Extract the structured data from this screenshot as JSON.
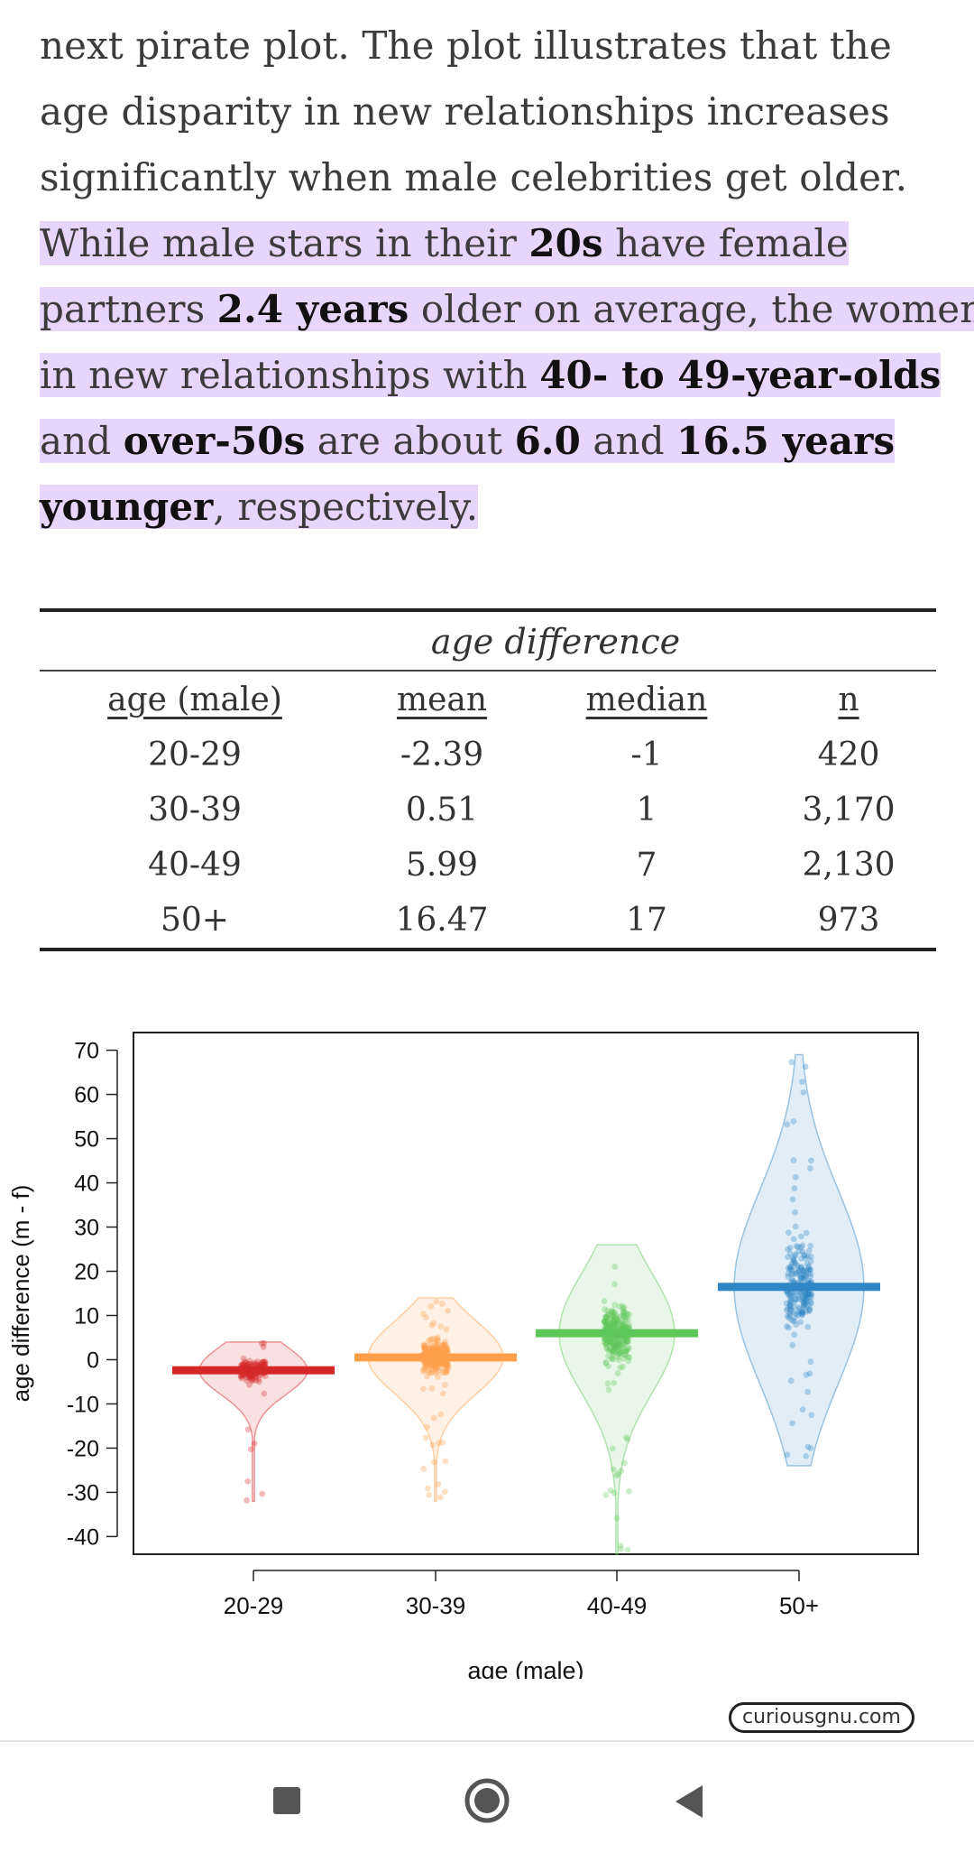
{
  "article": {
    "line1": "next pirate plot. The plot illustrates that the",
    "line2": "age disparity in new relationships increases",
    "line3": "significantly when male celebrities get older.",
    "l4a": "While male stars in their ",
    "l4b": "20s",
    "l4c": " have female",
    "l5a": "partners ",
    "l5b": "2.4 years",
    "l5c": " older on average, the women",
    "l6a": "in new relationships with ",
    "l6b": "40- to 49-year-olds",
    "l7a": "and ",
    "l7b": "over-50s",
    "l7c": " are about ",
    "l7d": "6.0",
    "l7e": " and ",
    "l7f": "16.5 years",
    "l8a": "younger",
    "l8b": ", respectively.",
    "highlight_color": "#e8d5fb"
  },
  "table": {
    "group_header": "age difference",
    "columns": [
      "age (male)",
      "mean",
      "median",
      "n"
    ],
    "rows": [
      [
        "20-29",
        "-2.39",
        "-1",
        "420"
      ],
      [
        "30-39",
        "0.51",
        "1",
        "3,170"
      ],
      [
        "40-49",
        "5.99",
        "7",
        "2,130"
      ],
      [
        "50+",
        "16.47",
        "17",
        "973"
      ]
    ]
  },
  "chart_data": {
    "type": "scatter",
    "subtype": "pirate plot",
    "xlabel": "age (male)",
    "ylabel": "age difference (m - f)",
    "categories": [
      "20-29",
      "30-39",
      "40-49",
      "50+"
    ],
    "y_ticks": [
      70,
      60,
      50,
      40,
      30,
      20,
      10,
      0,
      -10,
      -20,
      -30,
      -40
    ],
    "ylim": [
      -44,
      74
    ],
    "series": [
      {
        "category": "20-29",
        "mean": -2.39,
        "min": -32,
        "max": 4,
        "q_low": -10,
        "q_high": 2,
        "color": "#d62728"
      },
      {
        "category": "30-39",
        "mean": 0.51,
        "min": -32,
        "max": 14,
        "q_low": -10,
        "q_high": 8,
        "color": "#ff9f4a"
      },
      {
        "category": "40-49",
        "mean": 5.99,
        "min": -44,
        "max": 26,
        "q_low": -12,
        "q_high": 18,
        "color": "#5fc65a"
      },
      {
        "category": "50+",
        "mean": 16.47,
        "min": -24,
        "max": 69,
        "q_low": -8,
        "q_high": 40,
        "color": "#2f86c4"
      }
    ],
    "grid": false
  },
  "watermark": "curiousgnu.com",
  "navbar": {
    "icons": [
      "recent-apps-icon",
      "home-icon",
      "back-icon"
    ]
  }
}
